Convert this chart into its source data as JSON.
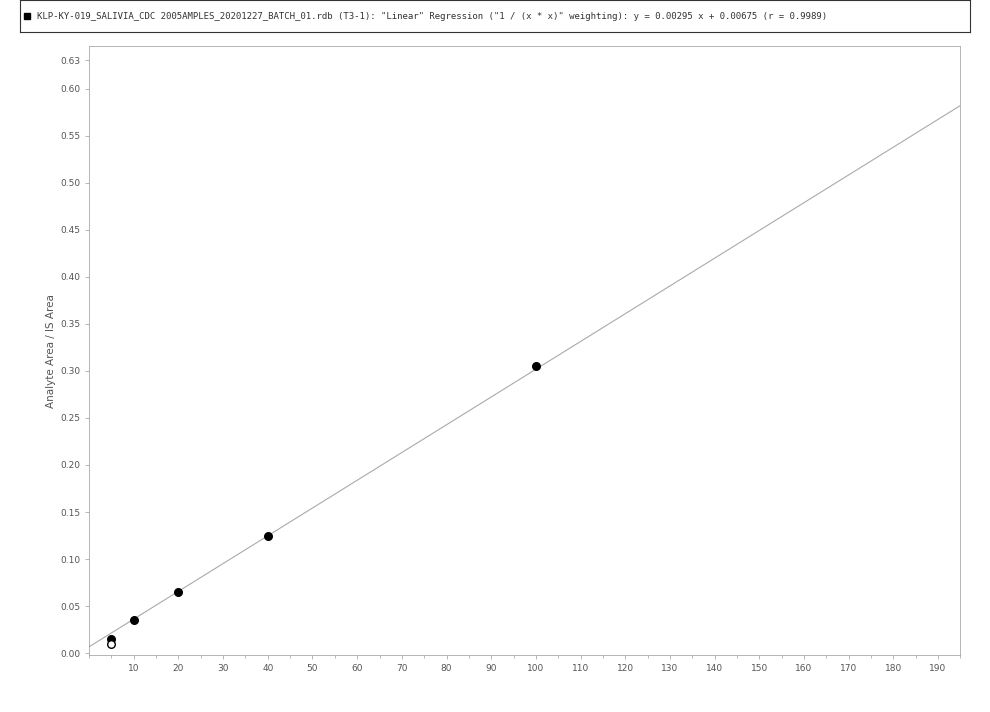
{
  "title_text": "KLP-KY-019_SALIVIA_CDC 2005AMPLES_20201227_BATCH_01.rdb (T3-1): \"Linear\" Regression (\"1 / (x * x)\" weighting): y = 0.00295 x + 0.00675 (r = 0.9989)",
  "ylabel": "Analyte Area / IS Area",
  "xlabel": "",
  "xlim": [
    0,
    195
  ],
  "ylim": [
    -0.002,
    0.645
  ],
  "xticks": [
    10,
    20,
    30,
    40,
    50,
    60,
    70,
    80,
    90,
    100,
    110,
    120,
    130,
    140,
    150,
    160,
    170,
    180,
    190
  ],
  "yticks": [
    0.0,
    0.05,
    0.1,
    0.15,
    0.2,
    0.25,
    0.3,
    0.35,
    0.4,
    0.45,
    0.5,
    0.55,
    0.6,
    0.63
  ],
  "filled_points_x": [
    5,
    10,
    20,
    40,
    100
  ],
  "filled_points_y": [
    0.015,
    0.035,
    0.065,
    0.125,
    0.305
  ],
  "open_points_x": [
    5
  ],
  "open_points_y": [
    0.01
  ],
  "regression_slope": 0.00295,
  "regression_intercept": 0.00675,
  "line_color": "#aaaaaa",
  "point_color": "#000000",
  "bg_color": "#ffffff",
  "legend_fontsize": 6.5,
  "axis_label_fontsize": 7.5,
  "tick_fontsize": 6.5,
  "spine_color": "#999999",
  "tick_color": "#999999",
  "label_color": "#555555"
}
